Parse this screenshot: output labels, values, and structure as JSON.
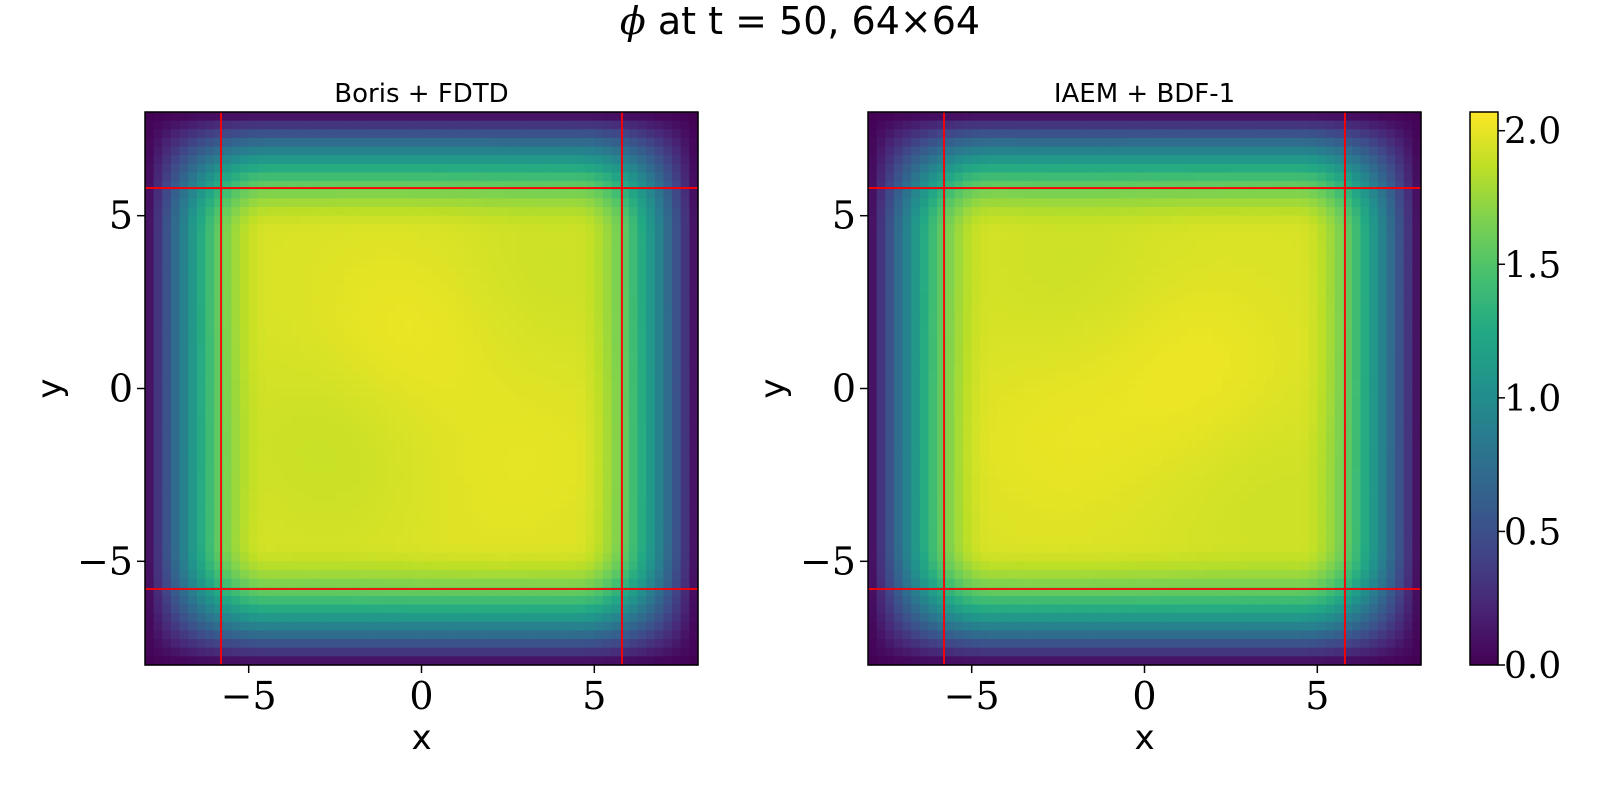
{
  "figure": {
    "title_symbol": "ϕ",
    "title_rest": " at t = 50, 64×64"
  },
  "chart_data": [
    {
      "type": "heatmap",
      "title": "Boris + FDTD",
      "xlabel": "x",
      "ylabel": "y",
      "grid": false,
      "grid_size": [
        64,
        64
      ],
      "xlim": [
        -8,
        8
      ],
      "ylim": [
        -8,
        8
      ],
      "xticks": [
        -5,
        0,
        5
      ],
      "yticks": [
        -5,
        0,
        5
      ],
      "xtick_labels": [
        "−5",
        "0",
        "5"
      ],
      "ytick_labels": [
        "−5",
        "0",
        "5"
      ],
      "vlim": [
        0.0,
        2.07
      ],
      "interior_value": 1.95,
      "interior_variation": 0.06,
      "boundary_value": 0.0,
      "colormap": "viridis",
      "lines": {
        "color": "#ff0000",
        "vertical_x": [
          -5.8,
          5.8
        ],
        "horizontal_y": [
          -5.8,
          5.8
        ]
      },
      "hotspots": [
        {
          "x": -0.5,
          "y": 1.5,
          "amp": 0.07
        },
        {
          "x": 3.5,
          "y": -1.8,
          "amp": 0.03
        },
        {
          "x": 1.5,
          "y": -3.5,
          "amp": 0.02
        }
      ],
      "coldspots": [
        {
          "x": -2.5,
          "y": -1.5,
          "amp": 0.06
        },
        {
          "x": 3.5,
          "y": 3.5,
          "amp": 0.04
        }
      ]
    },
    {
      "type": "heatmap",
      "title": "IAEM + BDF-1",
      "xlabel": "x",
      "ylabel": "y",
      "grid": false,
      "grid_size": [
        64,
        64
      ],
      "xlim": [
        -8,
        8
      ],
      "ylim": [
        -8,
        8
      ],
      "xticks": [
        -5,
        0,
        5
      ],
      "yticks": [
        -5,
        0,
        5
      ],
      "xtick_labels": [
        "−5",
        "0",
        "5"
      ],
      "ytick_labels": [
        "−5",
        "0",
        "5"
      ],
      "vlim": [
        0.0,
        2.07
      ],
      "interior_value": 1.95,
      "interior_variation": 0.06,
      "boundary_value": 0.0,
      "colormap": "viridis",
      "lines": {
        "color": "#ff0000",
        "vertical_x": [
          -5.8,
          5.8
        ],
        "horizontal_y": [
          -5.8,
          5.8
        ]
      },
      "hotspots": [
        {
          "x": 1.5,
          "y": 0.5,
          "amp": 0.07
        },
        {
          "x": -2.5,
          "y": -1.5,
          "amp": 0.05
        }
      ],
      "coldspots": [
        {
          "x": -2.0,
          "y": 3.5,
          "amp": 0.04
        },
        {
          "x": 3.5,
          "y": -3.0,
          "amp": 0.04
        }
      ]
    }
  ],
  "colorbar": {
    "colormap": "viridis",
    "range": [
      0.0,
      2.07
    ],
    "ticks": [
      0.0,
      0.5,
      1.0,
      1.5,
      2.0
    ],
    "tick_labels": [
      "0.0",
      "0.5",
      "1.0",
      "1.5",
      "2.0"
    ]
  }
}
